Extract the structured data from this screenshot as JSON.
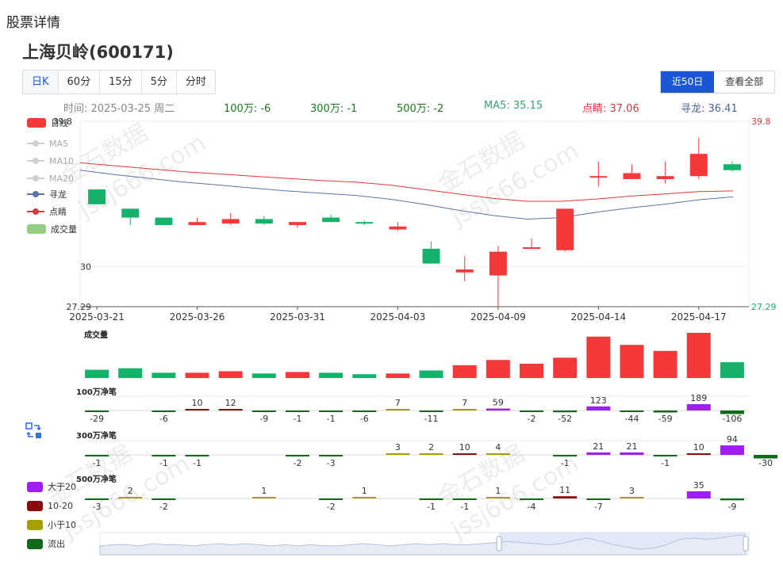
{
  "page_title": "股票详情",
  "stock_title": "上海贝岭(600171)",
  "tabs": [
    "日K",
    "60分",
    "15分",
    "5分",
    "分时"
  ],
  "active_tab": "日K",
  "range_buttons": [
    "近50日",
    "查看全部"
  ],
  "active_range": "近50日",
  "info": {
    "time": "时间:  2025-03-25 周二",
    "n100": "100万: -6",
    "n300": "300万: -1",
    "n500": "500万: -2",
    "ma5": "MA5: 35.15",
    "dianjing": "点睛: 37.06",
    "xunlong": "寻龙: 36.41"
  },
  "legend": {
    "rixian": "日线",
    "ma5": "MA5",
    "ma10": "MA10",
    "ma20": "MA20",
    "xunlong": "寻龙",
    "dianjing": "点睛",
    "volume": "成交量"
  },
  "bottom_legend": [
    "大于20",
    "10-20",
    "小于10",
    "流出"
  ],
  "colors": {
    "up": "#f5393a",
    "down": "#14b26b",
    "xunlong": "#5b72aa",
    "dianjing": "#e0383b",
    "gt20": "#9f1ef0",
    "r10_20": "#8b0a0a",
    "lt10": "#a3a000",
    "outflow": "#0f6b1a",
    "accent": "#1b56d6"
  },
  "watermarks": [
    "金石数据",
    "jssj666.com"
  ],
  "chart_data": {
    "type": "candlestick",
    "ylim": [
      27.29,
      39.8
    ],
    "y_labels": {
      "top_left": "39.8",
      "mid": "30",
      "bottom_left": "27.29",
      "top_right": "39.8",
      "bottom_right": "27.29"
    },
    "x_tick_labels": [
      "2025-03-21",
      "2025-03-26",
      "2025-03-31",
      "2025-04-03",
      "2025-04-09",
      "2025-04-14",
      "2025-04-17"
    ],
    "candles": [
      {
        "o": 35.2,
        "c": 34.2,
        "h": 35.2,
        "l": 34.2
      },
      {
        "o": 33.9,
        "c": 33.3,
        "h": 33.9,
        "l": 32.8
      },
      {
        "o": 33.3,
        "c": 32.8,
        "h": 33.3,
        "l": 32.8
      },
      {
        "o": 32.8,
        "c": 33.0,
        "h": 33.3,
        "l": 32.8
      },
      {
        "o": 32.9,
        "c": 33.2,
        "h": 33.6,
        "l": 32.8
      },
      {
        "o": 33.2,
        "c": 32.9,
        "h": 33.4,
        "l": 32.8
      },
      {
        "o": 32.8,
        "c": 33.0,
        "h": 33.0,
        "l": 32.6
      },
      {
        "o": 33.3,
        "c": 33.0,
        "h": 33.5,
        "l": 33.0
      },
      {
        "o": 33.0,
        "c": 32.9,
        "h": 33.1,
        "l": 32.8
      },
      {
        "o": 32.5,
        "c": 32.7,
        "h": 33.0,
        "l": 32.4
      },
      {
        "o": 31.2,
        "c": 30.2,
        "h": 31.7,
        "l": 30.2
      },
      {
        "o": 29.6,
        "c": 29.8,
        "h": 30.7,
        "l": 29.0
      },
      {
        "o": 29.4,
        "c": 31.0,
        "h": 31.4,
        "l": 27.29
      },
      {
        "o": 31.2,
        "c": 31.3,
        "h": 31.9,
        "l": 31.2
      },
      {
        "o": 31.1,
        "c": 33.9,
        "h": 33.9,
        "l": 31.0
      },
      {
        "o": 36.0,
        "c": 36.1,
        "h": 37.1,
        "l": 35.4
      },
      {
        "o": 35.9,
        "c": 36.3,
        "h": 36.9,
        "l": 35.9
      },
      {
        "o": 35.9,
        "c": 36.1,
        "h": 37.1,
        "l": 35.6
      },
      {
        "o": 36.1,
        "c": 37.6,
        "h": 38.7,
        "l": 35.9
      },
      {
        "o": 36.9,
        "c": 36.5,
        "h": 37.1,
        "l": 36.4
      }
    ],
    "dianjing_line": [
      37.0,
      36.8,
      36.6,
      36.4,
      36.25,
      36.1,
      35.95,
      35.8,
      35.7,
      35.5,
      35.2,
      34.9,
      34.6,
      34.4,
      34.4,
      34.55,
      34.75,
      34.9,
      35.05,
      35.1
    ],
    "xunlong_line": [
      36.5,
      36.2,
      35.95,
      35.7,
      35.5,
      35.3,
      35.1,
      34.95,
      34.8,
      34.55,
      34.2,
      33.8,
      33.45,
      33.2,
      33.3,
      33.65,
      33.95,
      34.2,
      34.5,
      34.7
    ],
    "volume": {
      "title": "成交量",
      "values": [
        11,
        13,
        7,
        7,
        9,
        6,
        8,
        7,
        5,
        6,
        10,
        17,
        24,
        19,
        27,
        55,
        44,
        36,
        60,
        21
      ]
    },
    "netflow": [
      {
        "title": "100万净笔",
        "values": [
          -29,
          -6,
          10,
          12,
          -9,
          -1,
          -1,
          -6,
          7,
          -11,
          7,
          59,
          -2,
          -52,
          123,
          -44,
          -59,
          189,
          -106
        ]
      },
      {
        "title": "300万净笔",
        "values": [
          -1,
          -1,
          -1,
          -2,
          -3,
          3,
          2,
          10,
          4,
          -1,
          21,
          21,
          -1,
          10,
          94,
          -30
        ]
      },
      {
        "title": "500万净笔",
        "values": [
          -3,
          2,
          -2,
          1,
          -2,
          1,
          -1,
          -1,
          1,
          -4,
          11,
          -7,
          3,
          35,
          -9
        ]
      }
    ],
    "netflow_slots": [
      [
        0,
        2,
        3,
        4,
        5,
        6,
        7,
        8,
        9,
        10,
        11,
        12,
        13,
        14,
        15,
        16,
        17,
        18,
        19
      ],
      [
        0,
        2,
        3,
        6,
        7,
        9,
        10,
        11,
        12,
        14,
        15,
        16,
        17,
        18,
        19,
        20
      ],
      [
        0,
        1,
        2,
        5,
        7,
        8,
        10,
        11,
        12,
        13,
        14,
        15,
        16,
        18,
        19
      ]
    ],
    "navigator": {
      "series": [
        8,
        9,
        9,
        8,
        10,
        9,
        9,
        8,
        9,
        10,
        9,
        10,
        9,
        8,
        9,
        8,
        9,
        8,
        8,
        9,
        10,
        9,
        8,
        9,
        10,
        9,
        10,
        9,
        9,
        10,
        11,
        12,
        11,
        10,
        9,
        10,
        13,
        15,
        12,
        9,
        7,
        5,
        6,
        9,
        14,
        15,
        14,
        15,
        17,
        18
      ]
    }
  }
}
